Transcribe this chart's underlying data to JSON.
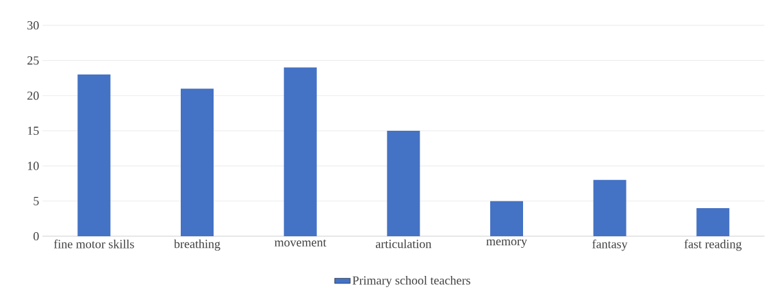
{
  "chart_data": {
    "type": "bar",
    "categories": [
      "fine motor skills",
      "breathing",
      "movement",
      "articulation",
      "memory",
      "fantasy",
      "fast reading"
    ],
    "series": [
      {
        "name": "Primary school teachers",
        "color": "#4472c4",
        "values": [
          23,
          21,
          24,
          15,
          5,
          8,
          4
        ]
      }
    ],
    "ylim": [
      0,
      30
    ],
    "yticks": [
      0,
      5,
      10,
      15,
      20,
      25,
      30
    ],
    "grid": "y",
    "legend": "bottom"
  }
}
